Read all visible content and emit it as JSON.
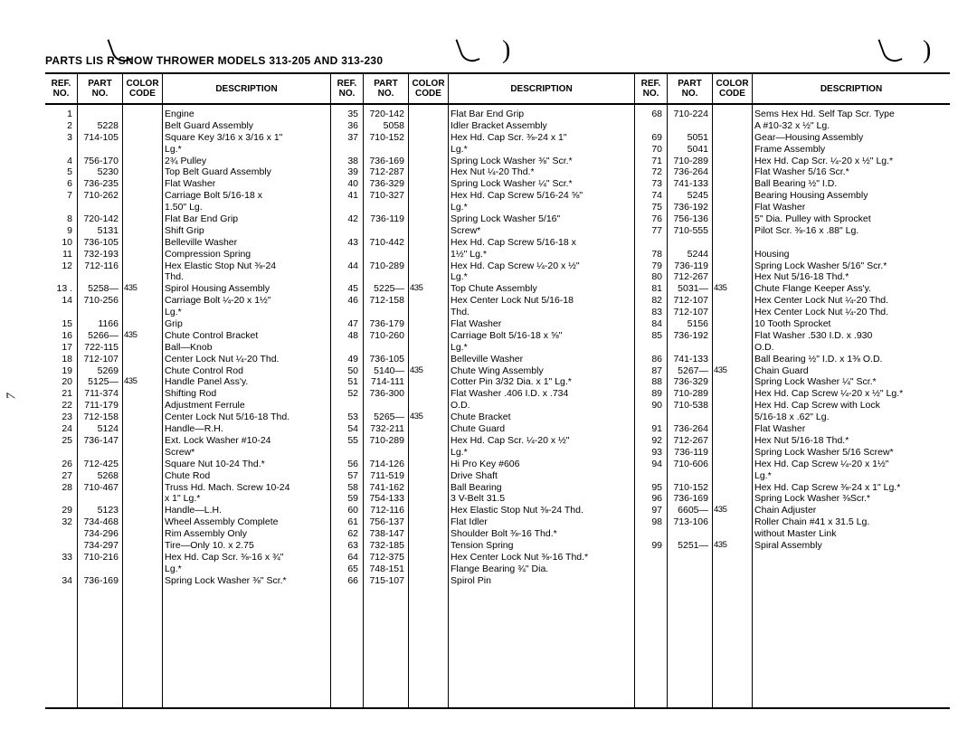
{
  "title": "PARTS LIS    R SNOW THROWER MODELS 313-205 AND 313-230",
  "page_num_side": "7",
  "header": {
    "ref1": "REF.",
    "ref2": "NO.",
    "part1": "PART",
    "part2": "NO.",
    "color1": "COLOR",
    "color2": "CODE",
    "desc": "DESCRIPTION"
  },
  "sections": [
    {
      "rows": [
        {
          "ref": "1",
          "part": "",
          "color": "",
          "desc": "Engine"
        },
        {
          "ref": "2",
          "part": "5228",
          "color": "",
          "desc": "Belt Guard Assembly"
        },
        {
          "ref": "3",
          "part": "714-105",
          "color": "",
          "desc": "Square Key 3/16 x 3/16 x 1\" Lg.*"
        },
        {
          "ref": "4",
          "part": "756-170",
          "color": "",
          "desc": "2¾ Pulley"
        },
        {
          "ref": "5",
          "part": "5230",
          "color": "",
          "desc": "Top Belt Guard Assembly"
        },
        {
          "ref": "6",
          "part": "736-235",
          "color": "",
          "desc": "Flat Washer"
        },
        {
          "ref": "7",
          "part": "710-262",
          "color": "",
          "desc": "Carriage Bolt 5/16-18 x 1.50\" Lg."
        },
        {
          "ref": "8",
          "part": "720-142",
          "color": "",
          "desc": "Flat Bar End Grip"
        },
        {
          "ref": "9",
          "part": "5131",
          "color": "",
          "desc": "Shift Grip"
        },
        {
          "ref": "10",
          "part": "736-105",
          "color": "",
          "desc": "Belleville Washer"
        },
        {
          "ref": "11",
          "part": "732-193",
          "color": "",
          "desc": "Compression Spring"
        },
        {
          "ref": "12",
          "part": "712-116",
          "color": "",
          "desc": "Hex Elastic Stop Nut ⅜-24 Thd."
        },
        {
          "ref": "13 .",
          "part": "5258—",
          "color": "435",
          "desc": "Spirol Housing Assembly"
        },
        {
          "ref": "14",
          "part": "710-256",
          "color": "",
          "desc": "Carriage Bolt ¼-20 x 1½\" Lg.*"
        },
        {
          "ref": "15",
          "part": "1166",
          "color": "",
          "desc": "Grip"
        },
        {
          "ref": "16",
          "part": "5266—",
          "color": "435",
          "desc": "Chute Control Bracket"
        },
        {
          "ref": "17",
          "part": "722-115",
          "color": "",
          "desc": "Ball—Knob"
        },
        {
          "ref": "18",
          "part": "712-107",
          "color": "",
          "desc": "Center Lock Nut ¼-20 Thd."
        },
        {
          "ref": "19",
          "part": "5269",
          "color": "",
          "desc": "Chute Control Rod"
        },
        {
          "ref": "20",
          "part": "5125—",
          "color": "435",
          "desc": "Handle Panel Ass'y."
        },
        {
          "ref": "21",
          "part": "711-374",
          "color": "",
          "desc": "Shifting Rod"
        },
        {
          "ref": "22",
          "part": "711-179",
          "color": "",
          "desc": "Adjustment Ferrule"
        },
        {
          "ref": "23",
          "part": "712-158",
          "color": "",
          "desc": "Center Lock Nut 5/16-18 Thd."
        },
        {
          "ref": "24",
          "part": "5124",
          "color": "",
          "desc": "Handle—R.H."
        },
        {
          "ref": "25",
          "part": "736-147",
          "color": "",
          "desc": "Ext. Lock Washer #10-24 Screw*"
        },
        {
          "ref": "26",
          "part": "712-425",
          "color": "",
          "desc": "Square Nut 10-24 Thd.*"
        },
        {
          "ref": "27",
          "part": "5268",
          "color": "",
          "desc": "Chute Rod"
        },
        {
          "ref": "28",
          "part": "710-467",
          "color": "",
          "desc": "Truss Hd. Mach. Screw 10-24 x 1\" Lg.*"
        },
        {
          "ref": "29",
          "part": "5123",
          "color": "",
          "desc": "Handle—L.H."
        },
        {
          "ref": "32",
          "part": "734-468",
          "color": "",
          "desc": "Wheel Assembly Complete"
        },
        {
          "ref": "",
          "part": "734-296",
          "color": "",
          "desc": "Rim Assembly Only"
        },
        {
          "ref": "",
          "part": "734-297",
          "color": "",
          "desc": "Tire—Only 10. x 2.75"
        },
        {
          "ref": "33",
          "part": "710-216",
          "color": "",
          "desc": "Hex Hd. Cap Scr. ⅜-16 x ¾\" Lg.*"
        },
        {
          "ref": "34",
          "part": "736-169",
          "color": "",
          "desc": "Spring Lock Washer ⅜\" Scr.*"
        }
      ]
    },
    {
      "rows": [
        {
          "ref": "35",
          "part": "720-142",
          "color": "",
          "desc": "Flat Bar End Grip"
        },
        {
          "ref": "36",
          "part": "5058",
          "color": "",
          "desc": "Idler Bracket Assembly"
        },
        {
          "ref": "37",
          "part": "710-152",
          "color": "",
          "desc": "Hex Hd. Cap Scr. ⅜-24 x 1\" Lg.*"
        },
        {
          "ref": "38",
          "part": "736-169",
          "color": "",
          "desc": "Spring Lock Washer ⅜\" Scr.*"
        },
        {
          "ref": "39",
          "part": "712-287",
          "color": "",
          "desc": "Hex Nut ¼-20 Thd.*"
        },
        {
          "ref": "40",
          "part": "736-329",
          "color": "",
          "desc": "Spring Lock Washer ¼\" Scr.*"
        },
        {
          "ref": "41",
          "part": "710-327",
          "color": "",
          "desc": "Hex Hd. Cap Screw 5/16-24 ⅝\" Lg.*"
        },
        {
          "ref": "42",
          "part": "736-119",
          "color": "",
          "desc": "Spring Lock Washer 5/16\" Screw*"
        },
        {
          "ref": "43",
          "part": "710-442",
          "color": "",
          "desc": "Hex Hd. Cap Screw 5/16-18 x 1½\" Lg.*"
        },
        {
          "ref": "44",
          "part": "710-289",
          "color": "",
          "desc": "Hex Hd. Cap Screw ¼-20 x ½\" Lg.*"
        },
        {
          "ref": "45",
          "part": "5225—",
          "color": "435",
          "desc": "Top Chute Assembly"
        },
        {
          "ref": "46",
          "part": "712-158",
          "color": "",
          "desc": "Hex Center Lock Nut 5/16-18 Thd."
        },
        {
          "ref": "47",
          "part": "736-179",
          "color": "",
          "desc": "Flat Washer"
        },
        {
          "ref": "48",
          "part": "710-260",
          "color": "",
          "desc": "Carriage Bolt 5/16-18 x ⅝\" Lg.*"
        },
        {
          "ref": "49",
          "part": "736-105",
          "color": "",
          "desc": "Belleville Washer"
        },
        {
          "ref": "50",
          "part": "5140—",
          "color": "435",
          "desc": "Chute Wing Assembly"
        },
        {
          "ref": "51",
          "part": "714-111",
          "color": "",
          "desc": "Cotter Pin 3/32 Dia. x 1\" Lg.*"
        },
        {
          "ref": "52",
          "part": "736-300",
          "color": "",
          "desc": "Flat Washer .406 I.D. x .734 O.D."
        },
        {
          "ref": "53",
          "part": "5265—",
          "color": "435",
          "desc": "Chute Bracket"
        },
        {
          "ref": "54",
          "part": "732-211",
          "color": "",
          "desc": "Chute Guard"
        },
        {
          "ref": "55",
          "part": "710-289",
          "color": "",
          "desc": "Hex Hd. Cap Scr. ¼-20 x ½\" Lg.*"
        },
        {
          "ref": "56",
          "part": "714-126",
          "color": "",
          "desc": "Hi Pro Key #606"
        },
        {
          "ref": "57",
          "part": "711-519",
          "color": "",
          "desc": "Drive Shaft"
        },
        {
          "ref": "58",
          "part": "741-162",
          "color": "",
          "desc": "Ball Bearing"
        },
        {
          "ref": "59",
          "part": "754-133",
          "color": "",
          "desc": "3 V-Belt 31.5"
        },
        {
          "ref": "60",
          "part": "712-116",
          "color": "",
          "desc": "Hex Elastic Stop Nut ⅜-24 Thd."
        },
        {
          "ref": "61",
          "part": "756-137",
          "color": "",
          "desc": "Flat Idler"
        },
        {
          "ref": "62",
          "part": "738-147",
          "color": "",
          "desc": "Shoulder Bolt ⅜-16 Thd.*"
        },
        {
          "ref": "63",
          "part": "732-185",
          "color": "",
          "desc": "Tension Spring"
        },
        {
          "ref": "64",
          "part": "712-375",
          "color": "",
          "desc": "Hex Center Lock Nut ⅜-16 Thd.*"
        },
        {
          "ref": "65",
          "part": "748-151",
          "color": "",
          "desc": "Flange Bearing ¾\" Dia."
        },
        {
          "ref": "66",
          "part": "715-107",
          "color": "",
          "desc": "Spirol Pin"
        }
      ]
    },
    {
      "rows": [
        {
          "ref": "68",
          "part": "710-224",
          "color": "",
          "desc": "Sems Hex Hd. Self Tap Scr. Type A #10-32 x ½\" Lg."
        },
        {
          "ref": "69",
          "part": "5051",
          "color": "",
          "desc": "Gear—Housing Assembly"
        },
        {
          "ref": "70",
          "part": "5041",
          "color": "",
          "desc": "Frame Assembly"
        },
        {
          "ref": "71",
          "part": "710-289",
          "color": "",
          "desc": "Hex Hd. Cap Scr. ¼-20 x ½\" Lg.*"
        },
        {
          "ref": "72",
          "part": "736-264",
          "color": "",
          "desc": "Flat Washer 5/16 Scr.*"
        },
        {
          "ref": "73",
          "part": "741-133",
          "color": "",
          "desc": "Ball Bearing ½\" I.D."
        },
        {
          "ref": "74",
          "part": "5245",
          "color": "",
          "desc": "Bearing Housing Assembly"
        },
        {
          "ref": "75",
          "part": "736-192",
          "color": "",
          "desc": "Flat Washer"
        },
        {
          "ref": "76",
          "part": "756-136",
          "color": "",
          "desc": "5\" Dia. Pulley with Sprocket"
        },
        {
          "ref": "77",
          "part": "710-555",
          "color": "",
          "desc": "Pilot Scr. ⅜-16 x .88\" Lg."
        },
        {
          "ref": "",
          "part": "",
          "color": "",
          "desc": ""
        },
        {
          "ref": "78",
          "part": "5244",
          "color": "",
          "desc": "Housing"
        },
        {
          "ref": "79",
          "part": "736-119",
          "color": "",
          "desc": "Spring Lock Washer 5/16\" Scr.*"
        },
        {
          "ref": "80",
          "part": "712-267",
          "color": "",
          "desc": "Hex Nut 5/16-18 Thd.*"
        },
        {
          "ref": "81",
          "part": "5031—",
          "color": "435",
          "desc": "Chute Flange Keeper Ass'y."
        },
        {
          "ref": "82",
          "part": "712-107",
          "color": "",
          "desc": "Hex Center Lock Nut ¼-20 Thd."
        },
        {
          "ref": "83",
          "part": "712-107",
          "color": "",
          "desc": "Hex Center Lock Nut ¼-20 Thd."
        },
        {
          "ref": "84",
          "part": "5156",
          "color": "",
          "desc": "10 Tooth Sprocket"
        },
        {
          "ref": "85",
          "part": "736-192",
          "color": "",
          "desc": "Flat Washer .530 I.D. x .930 O.D."
        },
        {
          "ref": "86",
          "part": "741-133",
          "color": "",
          "desc": "Ball Bearing ½\" I.D. x 1⅜ O.D."
        },
        {
          "ref": "87",
          "part": "5267—",
          "color": "435",
          "desc": "Chain Guard"
        },
        {
          "ref": "88",
          "part": "736-329",
          "color": "",
          "desc": "Spring Lock Washer ¼\" Scr.*"
        },
        {
          "ref": "89",
          "part": "710-289",
          "color": "",
          "desc": "Hex Hd. Cap Screw ¼-20 x ½\" Lg.*"
        },
        {
          "ref": "90",
          "part": "710-538",
          "color": "",
          "desc": "Hex Hd. Cap Screw with Lock 5/16-18 x .62\" Lg."
        },
        {
          "ref": "91",
          "part": "736-264",
          "color": "",
          "desc": "Flat Washer"
        },
        {
          "ref": "92",
          "part": "712-267",
          "color": "",
          "desc": "Hex Nut 5/16-18 Thd.*"
        },
        {
          "ref": "93",
          "part": "736-119",
          "color": "",
          "desc": "Spring Lock Washer 5/16 Screw*"
        },
        {
          "ref": "94",
          "part": "710-606",
          "color": "",
          "desc": "Hex Hd. Cap Screw ¼-20 x 1½\" Lg.*"
        },
        {
          "ref": "95",
          "part": "710-152",
          "color": "",
          "desc": "Hex Hd. Cap Screw ⅜-24 x 1\" Lg.*"
        },
        {
          "ref": "96",
          "part": "736-169",
          "color": "",
          "desc": "Spring Lock Washer ⅜Scr.*"
        },
        {
          "ref": "97",
          "part": "6605—",
          "color": "435",
          "desc": "Chain Adjuster"
        },
        {
          "ref": "98",
          "part": "713-106",
          "color": "",
          "desc": "Roller Chain #41 x 31.5 Lg. without Master Link"
        },
        {
          "ref": "99",
          "part": "5251—",
          "color": "435",
          "desc": "Spiral Assembly"
        }
      ]
    }
  ]
}
